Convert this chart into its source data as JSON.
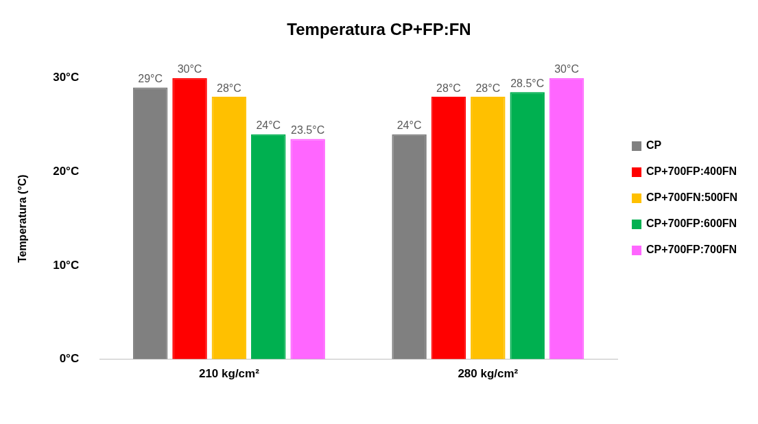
{
  "chart_data": {
    "type": "bar",
    "title": "Temperatura CP+FP:FN",
    "ylabel": "Temperatura (°C)",
    "categories": [
      "210 kg/cm²",
      "280 kg/cm²"
    ],
    "series": [
      {
        "name": "CP",
        "color": "#808080",
        "values": [
          29,
          24
        ],
        "value_labels": [
          "29°C",
          "24°C"
        ]
      },
      {
        "name": "CP+700FP:400FN",
        "color": "#ff0000",
        "values": [
          30,
          28
        ],
        "value_labels": [
          "30°C",
          "28°C"
        ]
      },
      {
        "name": "CP+700FN:500FN",
        "color": "#ffc000",
        "values": [
          28,
          28
        ],
        "value_labels": [
          "28°C",
          "28°C"
        ]
      },
      {
        "name": "CP+700FP:600FN",
        "color": "#00b050",
        "values": [
          24,
          28.5
        ],
        "value_labels": [
          "24°C",
          "28.5°C"
        ]
      },
      {
        "name": "CP+700FP:700FN",
        "color": "#ff66ff",
        "values": [
          23.5,
          30
        ],
        "value_labels": [
          "23.5°C",
          "30°C"
        ]
      }
    ],
    "ylim": [
      0,
      30
    ],
    "yticks": [
      {
        "value": 0,
        "label": "0°C"
      },
      {
        "value": 10,
        "label": "10°C"
      },
      {
        "value": 20,
        "label": "20°C"
      },
      {
        "value": 30,
        "label": "30°C"
      }
    ],
    "grid": false,
    "legend": "right"
  }
}
